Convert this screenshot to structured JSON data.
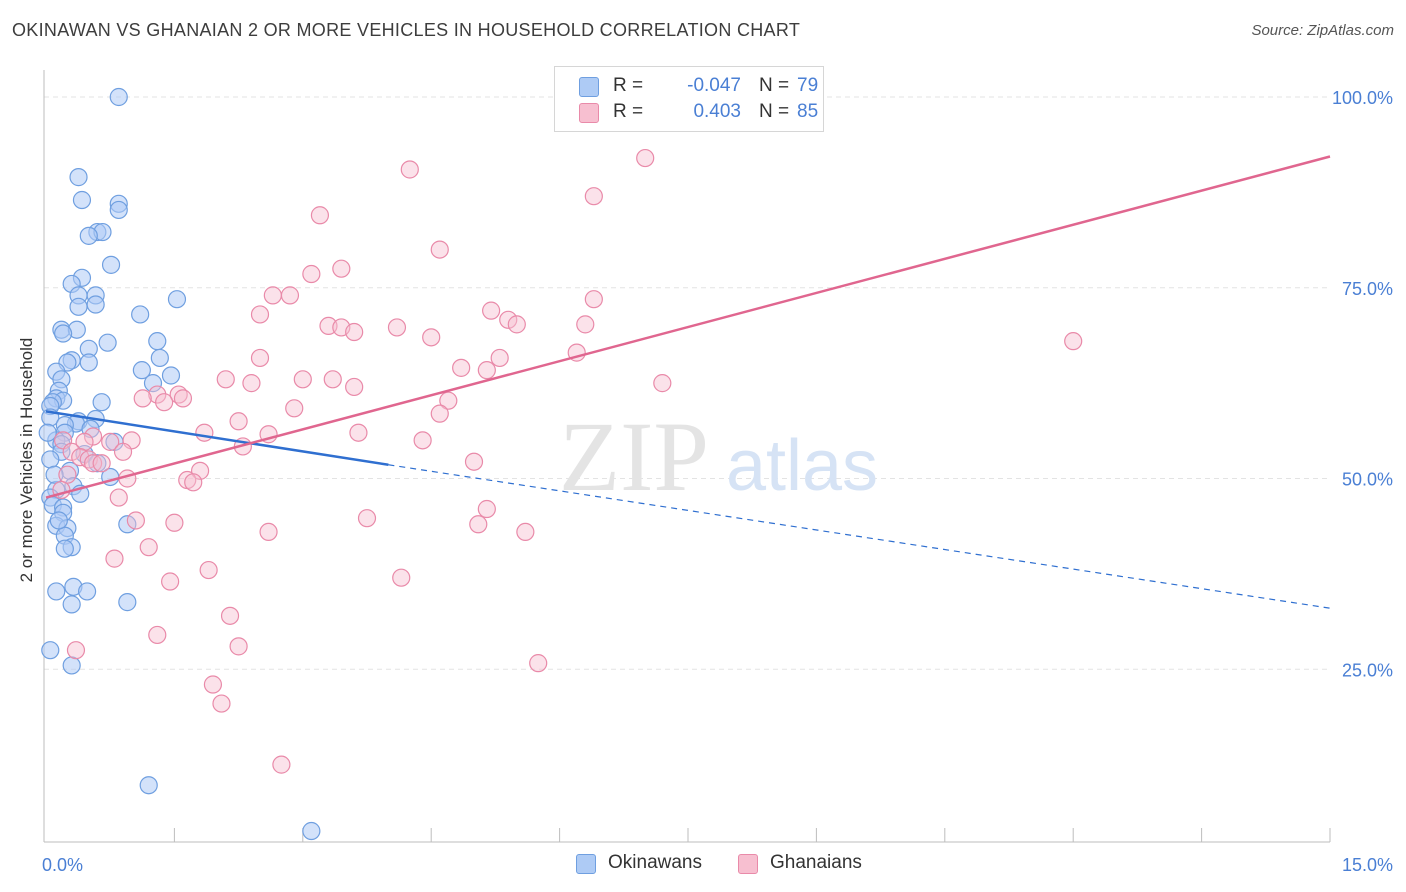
{
  "title": "OKINAWAN VS GHANAIAN 2 OR MORE VEHICLES IN HOUSEHOLD CORRELATION CHART",
  "source": "Source: ZipAtlas.com",
  "watermark": {
    "zip": "ZIP",
    "atlas": "atlas"
  },
  "legend": {
    "rows": [
      {
        "r_label": "R =",
        "r_value": "-0.047",
        "n_label": "N =",
        "n_value": "79"
      },
      {
        "r_label": "R =",
        "r_value": "0.403",
        "n_label": "N =",
        "n_value": "85"
      }
    ]
  },
  "bottom_legend": {
    "okinawans": "Okinawans",
    "ghanaians": "Ghanaians"
  },
  "colors": {
    "okinawan_fill": "#aecbf5",
    "okinawan_stroke": "#6f9fe0",
    "okinawan_line": "#2f6fd0",
    "ghanaian_fill": "#f7bfd0",
    "ghanaian_stroke": "#e98aa9",
    "ghanaian_line": "#e0668f",
    "tick_label": "#4a7fd4",
    "grid": "#e3e3e3"
  },
  "chart_data": {
    "type": "scatter",
    "title": "OKINAWAN VS GHANAIAN 2 OR MORE VEHICLES IN HOUSEHOLD CORRELATION CHART",
    "xlabel": "",
    "ylabel": "2 or more Vehicles in Household",
    "xlim": [
      0,
      15
    ],
    "ylim": [
      0,
      102
    ],
    "x_tick_labels": [
      {
        "value": 0,
        "label": "0.0%"
      },
      {
        "value": 15,
        "label": "15.0%"
      }
    ],
    "y_ticks": [
      {
        "value": 100,
        "label": "100.0%"
      },
      {
        "value": 75,
        "label": "75.0%"
      },
      {
        "value": 50,
        "label": "50.0%"
      },
      {
        "value": 25,
        "label": "25.0%"
      }
    ],
    "x_minor_ticks": [
      1.5,
      3,
      4.5,
      6,
      7.5,
      9,
      10.5,
      12,
      13.5,
      15
    ],
    "series": [
      {
        "name": "Okinawans",
        "r": -0.047,
        "n": 79,
        "trend": {
          "solid": [
            [
              0,
              58.8
            ],
            [
              4,
              51.8
            ]
          ],
          "dashed": [
            [
              4,
              51.8
            ],
            [
              15,
              33.0
            ]
          ]
        },
        "points": [
          [
            0.85,
            100
          ],
          [
            0.38,
            89.5
          ],
          [
            0.42,
            86.5
          ],
          [
            0.85,
            86.0
          ],
          [
            0.85,
            85.2
          ],
          [
            0.6,
            82.3
          ],
          [
            0.66,
            82.3
          ],
          [
            0.5,
            81.8
          ],
          [
            0.76,
            78.0
          ],
          [
            0.42,
            76.3
          ],
          [
            0.3,
            75.5
          ],
          [
            0.58,
            74.0
          ],
          [
            0.38,
            74.0
          ],
          [
            0.58,
            72.8
          ],
          [
            0.38,
            72.5
          ],
          [
            1.53,
            73.5
          ],
          [
            1.1,
            71.5
          ],
          [
            0.18,
            69.5
          ],
          [
            0.36,
            69.5
          ],
          [
            0.2,
            69.0
          ],
          [
            1.3,
            68.0
          ],
          [
            0.72,
            67.8
          ],
          [
            0.5,
            67.0
          ],
          [
            0.3,
            65.5
          ],
          [
            0.25,
            65.2
          ],
          [
            0.5,
            65.2
          ],
          [
            1.33,
            65.8
          ],
          [
            0.12,
            64.0
          ],
          [
            1.12,
            64.2
          ],
          [
            1.46,
            63.5
          ],
          [
            0.18,
            63.0
          ],
          [
            1.25,
            62.5
          ],
          [
            0.15,
            61.5
          ],
          [
            0.12,
            60.5
          ],
          [
            0.2,
            60.2
          ],
          [
            0.08,
            60.0
          ],
          [
            0.05,
            59.5
          ],
          [
            0.05,
            58.0
          ],
          [
            0.58,
            57.8
          ],
          [
            0.38,
            57.5
          ],
          [
            0.35,
            57.2
          ],
          [
            0.22,
            57.0
          ],
          [
            0.52,
            56.5
          ],
          [
            0.22,
            56.0
          ],
          [
            0.12,
            55.0
          ],
          [
            0.18,
            54.5
          ],
          [
            0.8,
            54.8
          ],
          [
            0.18,
            53.5
          ],
          [
            0.45,
            53.2
          ],
          [
            0.05,
            52.5
          ],
          [
            0.28,
            51.0
          ],
          [
            0.75,
            50.2
          ],
          [
            0.32,
            49.0
          ],
          [
            0.12,
            48.5
          ],
          [
            0.05,
            47.5
          ],
          [
            0.08,
            46.5
          ],
          [
            0.2,
            46.2
          ],
          [
            0.2,
            45.5
          ],
          [
            0.95,
            44.0
          ],
          [
            0.12,
            43.8
          ],
          [
            0.25,
            43.5
          ],
          [
            0.22,
            42.5
          ],
          [
            0.3,
            41.0
          ],
          [
            0.22,
            40.8
          ],
          [
            0.32,
            35.8
          ],
          [
            0.12,
            35.2
          ],
          [
            0.48,
            35.2
          ],
          [
            0.95,
            33.8
          ],
          [
            0.3,
            33.5
          ],
          [
            0.05,
            27.5
          ],
          [
            0.3,
            25.5
          ],
          [
            1.2,
            9.8
          ],
          [
            3.1,
            3.8
          ],
          [
            0.1,
            50.5
          ],
          [
            0.65,
            60.0
          ],
          [
            0.15,
            44.5
          ],
          [
            0.4,
            48.0
          ],
          [
            0.6,
            52.0
          ],
          [
            0.02,
            56.0
          ]
        ]
      },
      {
        "name": "Ghanaians",
        "r": 0.403,
        "n": 85,
        "trend": {
          "solid": [
            [
              0,
              47.5
            ],
            [
              15,
              92.2
            ]
          ]
        },
        "points": [
          [
            7.0,
            92.0
          ],
          [
            4.25,
            90.5
          ],
          [
            6.4,
            87.0
          ],
          [
            3.2,
            84.5
          ],
          [
            4.6,
            80.0
          ],
          [
            3.45,
            77.5
          ],
          [
            3.1,
            76.8
          ],
          [
            2.65,
            74.0
          ],
          [
            2.85,
            74.0
          ],
          [
            6.4,
            73.5
          ],
          [
            5.2,
            72.0
          ],
          [
            2.5,
            71.5
          ],
          [
            5.4,
            70.8
          ],
          [
            3.3,
            70.0
          ],
          [
            3.45,
            69.8
          ],
          [
            4.1,
            69.8
          ],
          [
            5.5,
            70.2
          ],
          [
            6.3,
            70.2
          ],
          [
            3.6,
            69.2
          ],
          [
            4.5,
            68.5
          ],
          [
            12.0,
            68.0
          ],
          [
            6.2,
            66.5
          ],
          [
            2.5,
            65.8
          ],
          [
            5.3,
            65.8
          ],
          [
            4.85,
            64.5
          ],
          [
            5.15,
            64.2
          ],
          [
            2.1,
            63.0
          ],
          [
            3.0,
            63.0
          ],
          [
            3.35,
            63.0
          ],
          [
            7.2,
            62.5
          ],
          [
            2.4,
            62.5
          ],
          [
            3.6,
            62.0
          ],
          [
            1.3,
            61.0
          ],
          [
            1.55,
            61.0
          ],
          [
            1.13,
            60.5
          ],
          [
            1.6,
            60.5
          ],
          [
            1.38,
            60.0
          ],
          [
            4.7,
            60.2
          ],
          [
            2.9,
            59.2
          ],
          [
            4.6,
            58.5
          ],
          [
            2.25,
            57.5
          ],
          [
            3.65,
            56.0
          ],
          [
            2.6,
            55.8
          ],
          [
            1.85,
            56.0
          ],
          [
            0.55,
            55.5
          ],
          [
            0.2,
            55.0
          ],
          [
            1.0,
            55.0
          ],
          [
            4.4,
            55.0
          ],
          [
            0.75,
            54.8
          ],
          [
            0.45,
            54.8
          ],
          [
            2.3,
            54.2
          ],
          [
            0.3,
            53.5
          ],
          [
            0.9,
            53.5
          ],
          [
            0.4,
            52.8
          ],
          [
            0.5,
            52.5
          ],
          [
            0.55,
            52.0
          ],
          [
            0.65,
            52.0
          ],
          [
            5.0,
            52.2
          ],
          [
            1.8,
            51.0
          ],
          [
            0.25,
            50.5
          ],
          [
            1.65,
            49.8
          ],
          [
            0.95,
            50.0
          ],
          [
            1.72,
            49.5
          ],
          [
            0.18,
            48.5
          ],
          [
            0.85,
            47.5
          ],
          [
            5.15,
            46.0
          ],
          [
            3.75,
            44.8
          ],
          [
            1.05,
            44.5
          ],
          [
            1.5,
            44.2
          ],
          [
            5.05,
            44.0
          ],
          [
            2.6,
            43.0
          ],
          [
            5.6,
            43.0
          ],
          [
            1.2,
            41.0
          ],
          [
            0.8,
            39.5
          ],
          [
            1.9,
            38.0
          ],
          [
            4.15,
            37.0
          ],
          [
            1.45,
            36.5
          ],
          [
            2.15,
            32.0
          ],
          [
            1.3,
            29.5
          ],
          [
            2.25,
            28.0
          ],
          [
            0.35,
            27.5
          ],
          [
            5.75,
            25.8
          ],
          [
            1.95,
            23.0
          ],
          [
            2.05,
            20.5
          ],
          [
            2.75,
            12.5
          ]
        ]
      }
    ]
  }
}
